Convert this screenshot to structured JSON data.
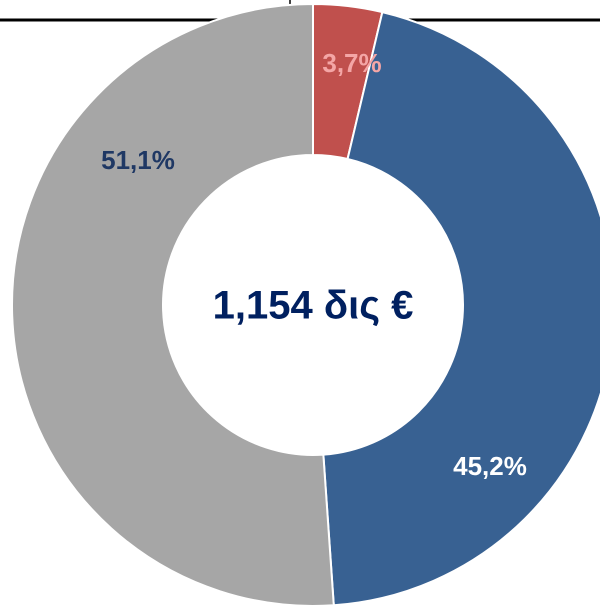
{
  "chart_data": {
    "type": "donut",
    "center_label": "1,154 δις €",
    "categories": [
      null,
      null,
      null
    ],
    "values": [
      3.7,
      45.2,
      51.1
    ],
    "value_labels": [
      "3,7%",
      "45,2%",
      "51,1%"
    ],
    "colors": [
      "#c0504d",
      "#386192",
      "#a6a6a6"
    ],
    "label_colors": [
      "#f4a6a6",
      "#ffffff",
      "#1f3864"
    ],
    "center_color": "#002060"
  }
}
